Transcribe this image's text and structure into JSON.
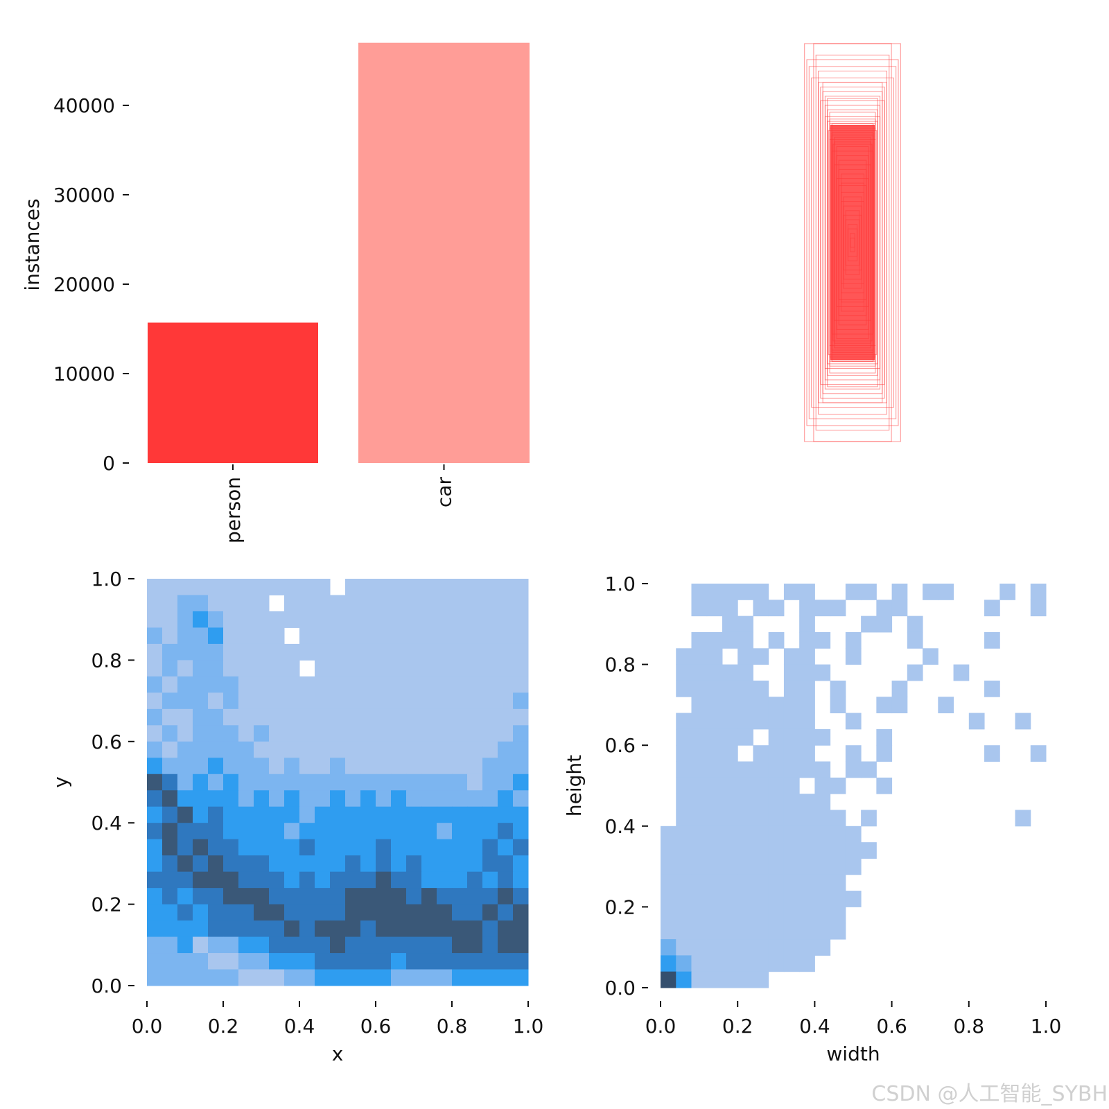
{
  "chart_data": [
    {
      "type": "bar",
      "categories": [
        "person",
        "car"
      ],
      "values": [
        15700,
        47000
      ],
      "colors": [
        "#ff3838",
        "#ff9d97"
      ],
      "ylabel": "instances",
      "xlabel": "",
      "ylim": [
        0,
        47000
      ],
      "yticks": [
        "0",
        "10000",
        "20000",
        "30000",
        "40000"
      ],
      "ytick_values": [
        0,
        10000,
        20000,
        30000,
        40000
      ]
    },
    {
      "type": "boxes",
      "description_units": "normalized box width/height, centered",
      "color": "#ff3838",
      "boxes": [
        [
          0.21,
          0.87
        ],
        [
          0.17,
          0.87
        ],
        [
          0.16,
          0.82
        ],
        [
          0.19,
          0.77
        ],
        [
          0.18,
          0.72
        ],
        [
          0.15,
          0.7
        ],
        [
          0.14,
          0.68
        ],
        [
          0.13,
          0.66
        ],
        [
          0.12,
          0.64
        ],
        [
          0.14,
          0.62
        ],
        [
          0.12,
          0.6
        ],
        [
          0.11,
          0.58
        ],
        [
          0.1,
          0.57
        ],
        [
          0.12,
          0.55
        ],
        [
          0.1,
          0.54
        ],
        [
          0.09,
          0.52
        ],
        [
          0.1,
          0.5
        ],
        [
          0.09,
          0.48
        ],
        [
          0.08,
          0.46
        ],
        [
          0.1,
          0.45
        ],
        [
          0.08,
          0.44
        ],
        [
          0.07,
          0.42
        ],
        [
          0.09,
          0.4
        ],
        [
          0.07,
          0.38
        ],
        [
          0.06,
          0.36
        ],
        [
          0.08,
          0.34
        ],
        [
          0.06,
          0.32
        ],
        [
          0.05,
          0.3
        ],
        [
          0.07,
          0.28
        ],
        [
          0.05,
          0.26
        ],
        [
          0.06,
          0.25
        ],
        [
          0.05,
          0.22
        ],
        [
          0.04,
          0.2
        ],
        [
          0.05,
          0.18
        ],
        [
          0.04,
          0.16
        ],
        [
          0.03,
          0.14
        ],
        [
          0.04,
          0.12
        ],
        [
          0.03,
          0.1
        ],
        [
          0.02,
          0.08
        ],
        [
          0.02,
          0.06
        ],
        [
          0.01,
          0.04
        ],
        [
          0.01,
          0.02
        ],
        [
          0.11,
          0.53
        ],
        [
          0.095,
          0.51
        ],
        [
          0.105,
          0.49
        ],
        [
          0.09,
          0.47
        ],
        [
          0.1,
          0.52
        ],
        [
          0.085,
          0.43
        ],
        [
          0.2,
          0.8
        ],
        [
          0.15,
          0.75
        ],
        [
          0.13,
          0.7
        ],
        [
          0.11,
          0.63
        ]
      ]
    },
    {
      "type": "heatmap",
      "xlabel": "x",
      "ylabel": "y",
      "xlim": [
        0,
        1
      ],
      "ylim": [
        0,
        1
      ],
      "xticks": [
        "0.0",
        "0.2",
        "0.4",
        "0.6",
        "0.8",
        "1.0"
      ],
      "yticks": [
        "0.0",
        "0.2",
        "0.4",
        "0.6",
        "0.8",
        "1.0"
      ],
      "palette": [
        "#ffffff",
        "#a9c6ee",
        "#7cb5f0",
        "#2f9df0",
        "#2f78bf",
        "#3a5878"
      ],
      "rows_top_to_bottom": [
        "1111111111110111111111111",
        "1122111101111111111111111",
        "1123211111111111111111111",
        "2122311110111111111111111",
        "1222211111111111111111111",
        "1212211111011111111111111",
        "2122221111111111111111111",
        "1222121111111111111111112",
        "2112211111111111111111111",
        "1212221211111111111111112",
        "2122222111111111111111122",
        "3222322212112111111111222",
        "5423232222222222222221223",
        "4533332323223232322222232",
        "3453433333233333333333333",
        "4544433332333333333233343",
        "3545443333433334333333434",
        "3454544433333434343333443",
        "4445554443434445443334343",
        "3434455544444555545444454",
        "3343444554444555555544545",
        "3333444445455545555555455",
        "2231223344445444444455455",
        "2222112233344444344444444",
        "2222221112233333222233333"
      ]
    },
    {
      "type": "heatmap",
      "xlabel": "width",
      "ylabel": "height",
      "xlim": [
        0,
        1
      ],
      "ylim": [
        0,
        1
      ],
      "xticks": [
        "0.0",
        "0.2",
        "0.4",
        "0.6",
        "0.8",
        "1.0"
      ],
      "yticks": [
        "0.0",
        "0.2",
        "0.4",
        "0.6",
        "0.8",
        "1.0"
      ],
      "palette": [
        "#ffffff",
        "#a9c6ee",
        "#6fb0ee",
        "#2f9df0",
        "#2f78bf",
        "#344f6e"
      ],
      "rows_top_to_bottom": [
        "0011111011001101011000101",
        "0011101101110011000001001",
        "0000110001000110100000000",
        "0011110101101000100001000",
        "0111011011001000010000000",
        "0111110011100000100100000",
        "0111111011010001000001000",
        "0011111111010011001000000",
        "0111111111001000000010010",
        "0111110111100010000000000",
        "0111101111001010000001001",
        "0111111111101100000000000",
        "0111111110110010000000000",
        "0111111111100000000000000",
        "0111111111110100000000010",
        "1111111111111000000000000",
        "1111111111111100000000000",
        "1111111111111000000000000",
        "1111111111110000000000000",
        "1111111111111000000000000",
        "1111111111110000000000000",
        "1111111111110000000000000",
        "2111111111100000000000000",
        "3211111111000000000000000",
        "5311111000000000000000000"
      ]
    }
  ],
  "watermark": "CSDN @人工智能_SYBH"
}
